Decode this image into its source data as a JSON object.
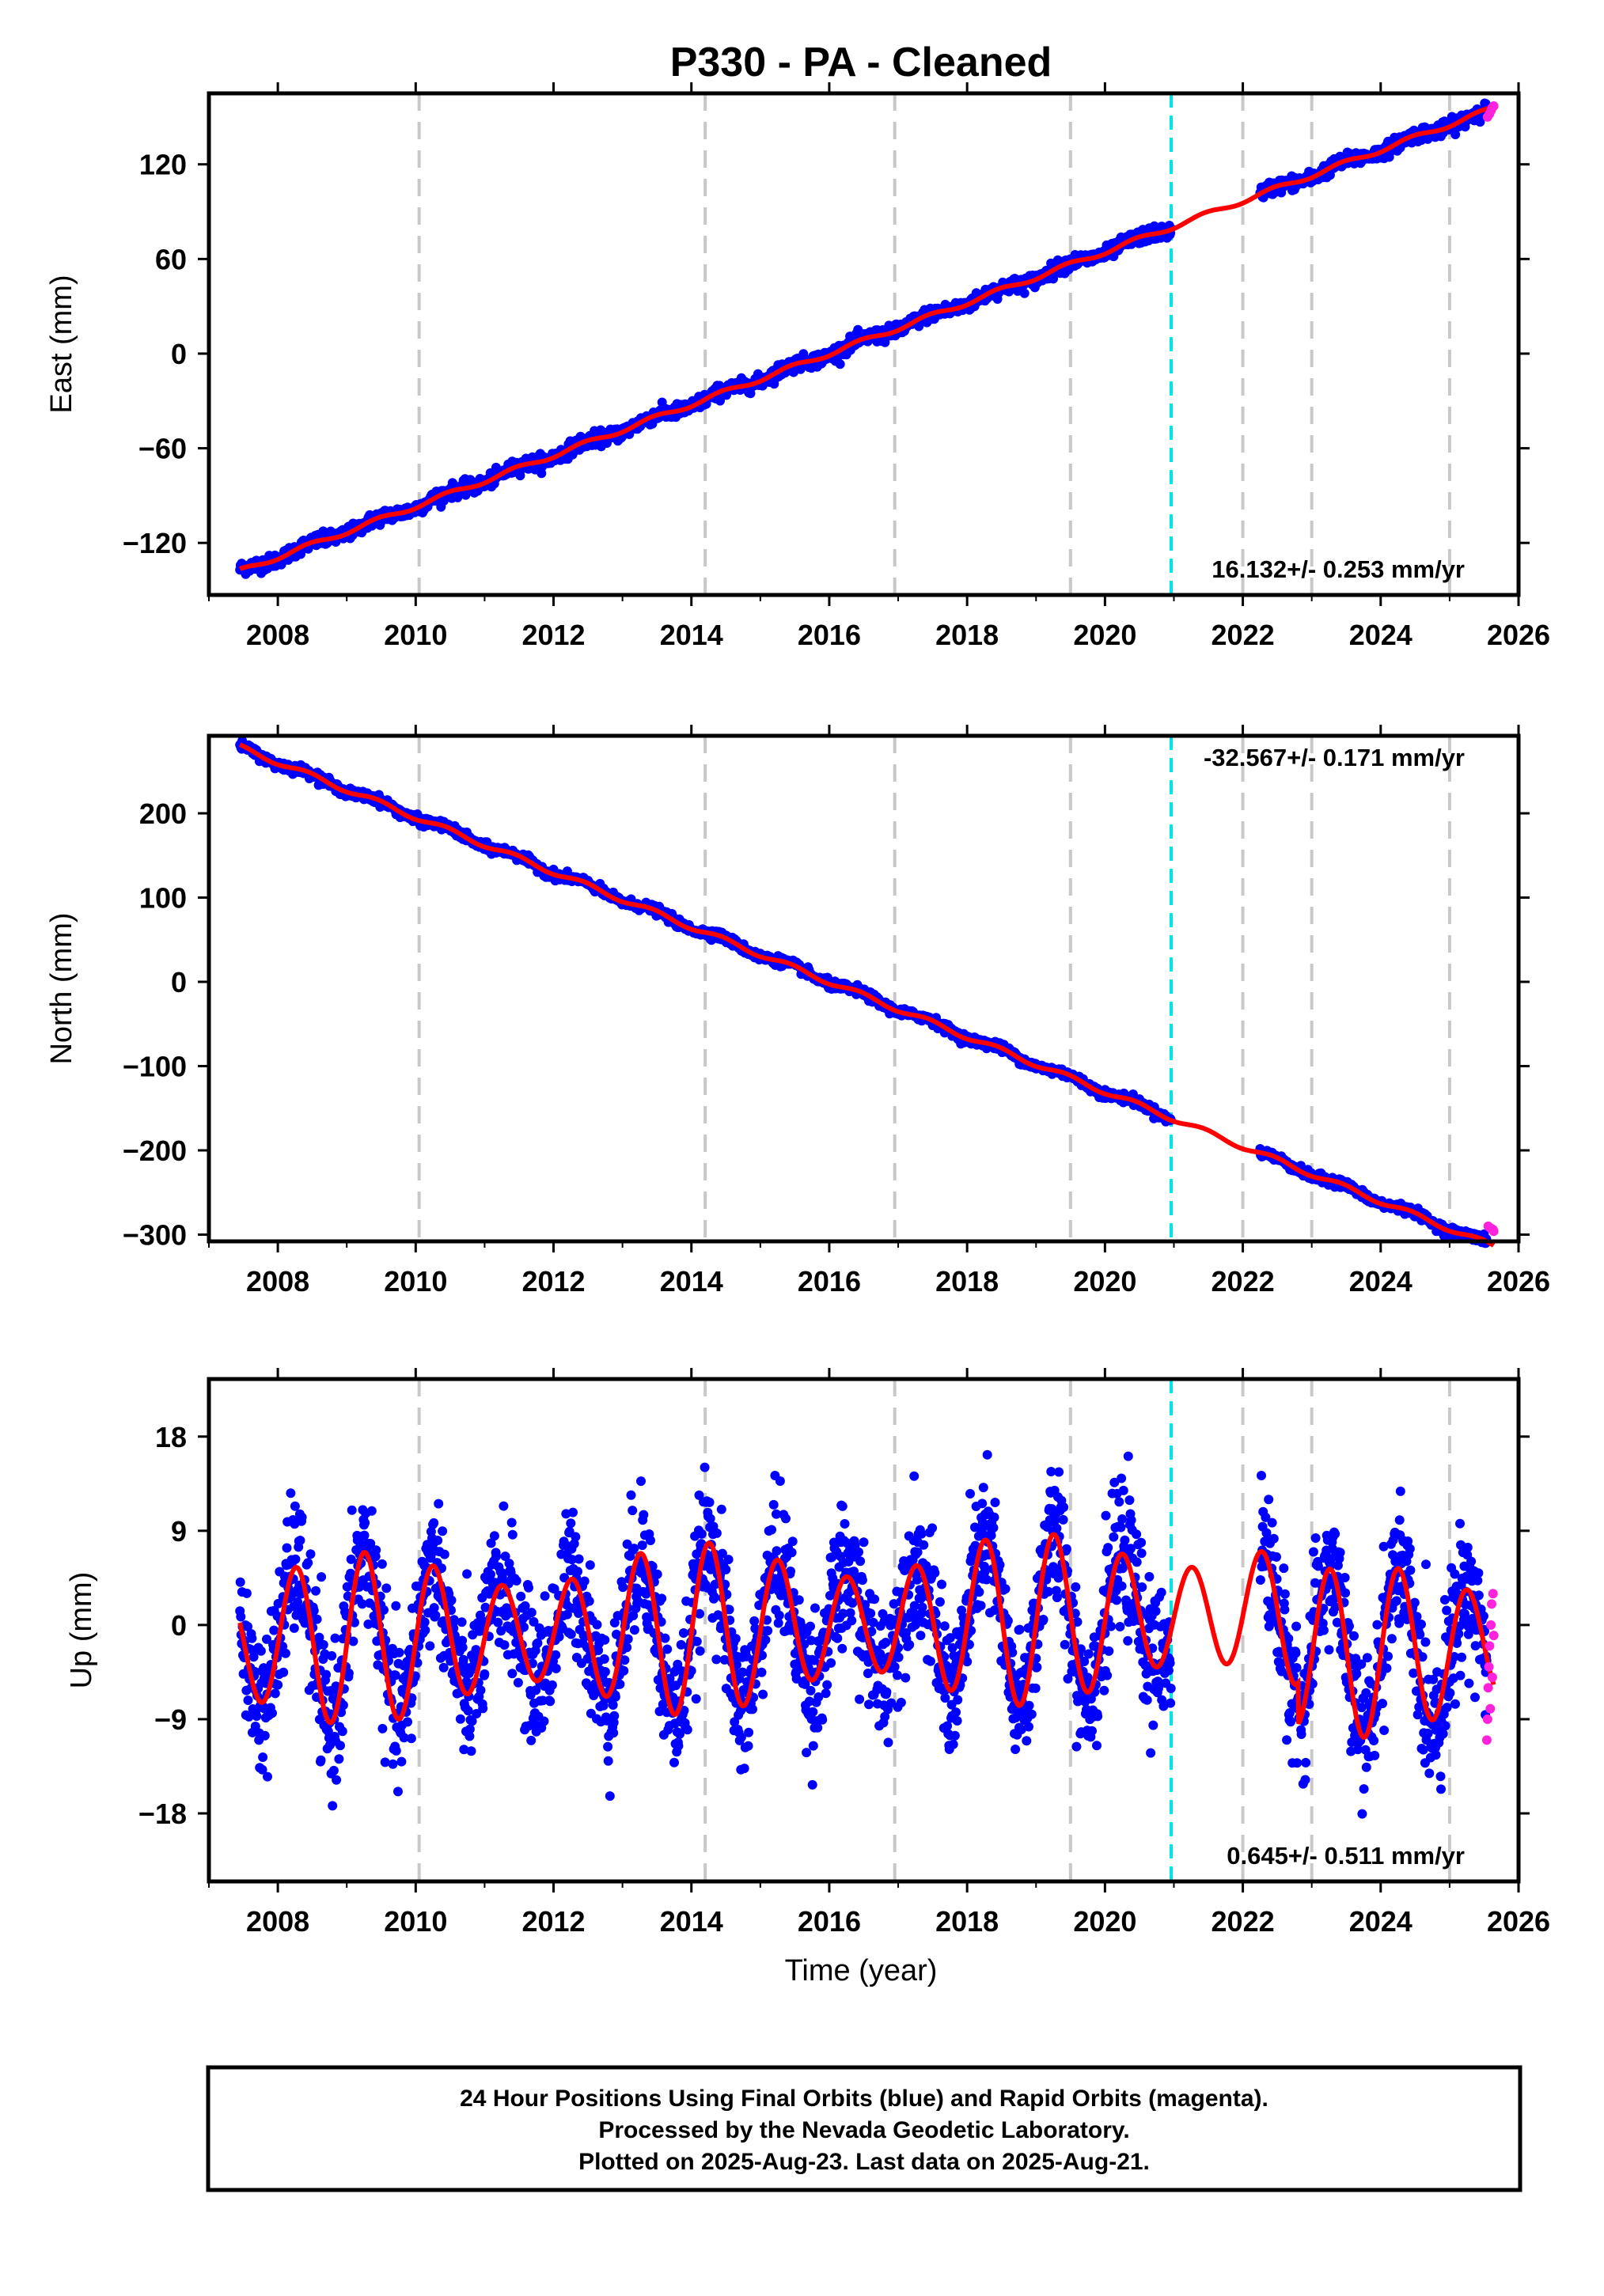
{
  "title": "P330  - PA - Cleaned",
  "colors": {
    "final_orbits": "#0000ff",
    "rapid_orbits": "#ff22dd",
    "model": "#ff0000",
    "event_line": "#00e5e5",
    "equipment_line": "#c8c8c8",
    "frame": "#000000"
  },
  "chart_data": [
    {
      "type": "scatter",
      "component": "east",
      "ylabel": "East (mm)",
      "xlim": [
        2007.0,
        2026.0
      ],
      "ylim": [
        -153,
        165
      ],
      "x_ticks": [
        "2008",
        "2010",
        "2012",
        "2014",
        "2016",
        "2018",
        "2020",
        "2022",
        "2024",
        "2026"
      ],
      "y_ticks": [
        "−120",
        "−60",
        "0",
        "60",
        "120"
      ],
      "rate_label": "16.132+/- 0.253 mm/yr",
      "rate_position": "bottom-right",
      "data_span": [
        2007.45,
        2025.64
      ],
      "gap": [
        2020.96,
        2022.25
      ],
      "trend": {
        "rate": 16.132,
        "value_at_2016": 0
      },
      "seasonal_amplitude": 1.5,
      "model_start": -146,
      "rapid_points": [
        [
          2025.55,
          150
        ],
        [
          2025.58,
          152
        ],
        [
          2025.6,
          154
        ],
        [
          2025.62,
          156
        ],
        [
          2025.64,
          157
        ]
      ],
      "equipment_change_years": [
        2010.05,
        2014.2,
        2016.95,
        2019.5,
        2022.0,
        2023.0,
        2025.0
      ],
      "event_year": 2020.96,
      "grid": false
    },
    {
      "type": "scatter",
      "component": "north",
      "ylabel": "North (mm)",
      "xlim": [
        2007.0,
        2026.0
      ],
      "ylim": [
        -308,
        292
      ],
      "x_ticks": [
        "2008",
        "2010",
        "2012",
        "2014",
        "2016",
        "2018",
        "2020",
        "2022",
        "2024",
        "2026"
      ],
      "y_ticks": [
        "−300",
        "−200",
        "−100",
        "0",
        "100",
        "200"
      ],
      "rate_label": "-32.567+/- 0.171 mm/yr",
      "rate_position": "top-right",
      "data_span": [
        2007.45,
        2025.64
      ],
      "gap": [
        2020.96,
        2022.25
      ],
      "trend": {
        "rate": -32.567,
        "value_at_2016": 0
      },
      "seasonal_amplitude": 3,
      "model_start": 285,
      "rapid_points": [
        [
          2025.56,
          -290
        ],
        [
          2025.59,
          -292
        ],
        [
          2025.61,
          -293
        ],
        [
          2025.63,
          -294
        ],
        [
          2025.64,
          -296
        ]
      ],
      "equipment_change_years": [
        2010.05,
        2014.2,
        2016.95,
        2019.5,
        2022.0,
        2023.0,
        2025.0
      ],
      "event_year": 2020.96,
      "grid": false
    },
    {
      "type": "scatter",
      "component": "up",
      "ylabel": "Up (mm)",
      "xlabel": "Time (year)",
      "xlim": [
        2007.0,
        2026.0
      ],
      "ylim": [
        -24.5,
        23.5
      ],
      "x_ticks": [
        "2008",
        "2010",
        "2012",
        "2014",
        "2016",
        "2018",
        "2020",
        "2022",
        "2024",
        "2026"
      ],
      "y_ticks": [
        "−18",
        "−9",
        "0",
        "9",
        "18"
      ],
      "rate_label": "0.645+/- 0.511 mm/yr",
      "rate_position": "bottom-right",
      "data_span": [
        2007.45,
        2025.64
      ],
      "gap": [
        2020.96,
        2022.25
      ],
      "trend": {
        "rate": 0.645,
        "value_at_2016": 0
      },
      "seasonal_amplitude": 7.5,
      "noise": 3.2,
      "rapid_points": [
        [
          2025.54,
          -11
        ],
        [
          2025.55,
          -9
        ],
        [
          2025.56,
          -6
        ],
        [
          2025.57,
          -4
        ],
        [
          2025.58,
          -2
        ],
        [
          2025.59,
          -8
        ],
        [
          2025.6,
          0
        ],
        [
          2025.61,
          2
        ],
        [
          2025.62,
          -5
        ],
        [
          2025.63,
          3
        ],
        [
          2025.64,
          -1
        ]
      ],
      "equipment_change_years": [
        2010.05,
        2014.2,
        2016.95,
        2019.5,
        2022.0,
        2023.0,
        2025.0
      ],
      "event_year": 2020.96,
      "grid": false
    }
  ],
  "footer": {
    "line1": "24 Hour Positions Using Final Orbits (blue) and Rapid Orbits (magenta).",
    "line2": "Processed by the Nevada Geodetic Laboratory.",
    "line3": "Plotted on 2025-Aug-23. Last data on 2025-Aug-21."
  }
}
